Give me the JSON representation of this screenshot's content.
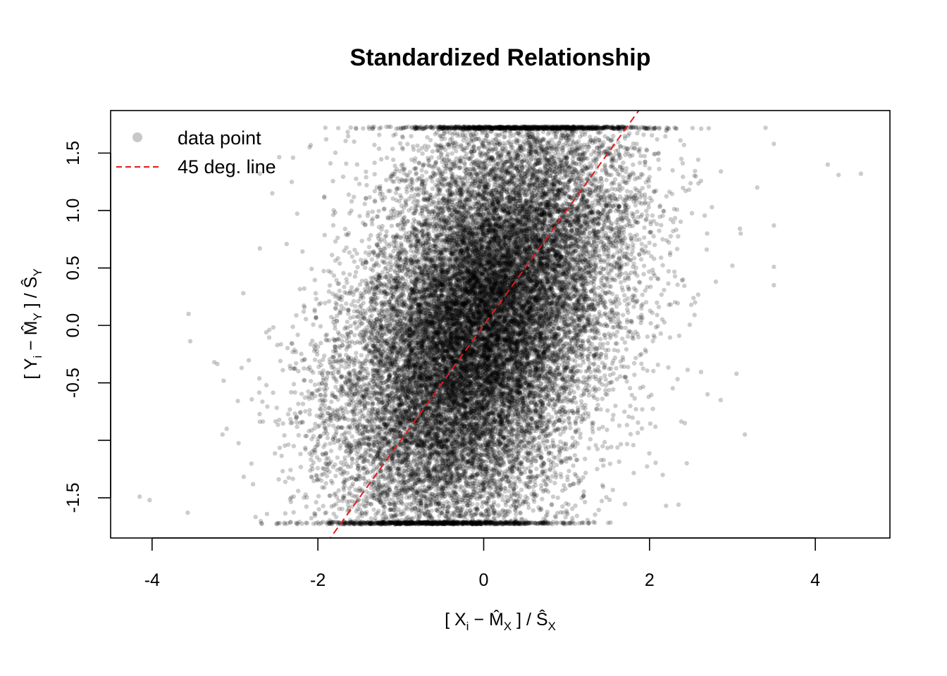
{
  "chart_data": {
    "type": "scatter",
    "title": "Standardized Relationship",
    "xlabel": {
      "open": "[ X",
      "sub_i": "i",
      "minus": " − ",
      "hat_m": "M̂",
      "sub_x": "X",
      "close": " ] / ",
      "hat_s": "Ŝ",
      "sub_x2": "X"
    },
    "ylabel": {
      "open": "[ Y",
      "sub_i": "i",
      "minus": " − ",
      "hat_m": "M̂",
      "sub_y": "Y",
      "close": " ] / ",
      "hat_s": "Ŝ",
      "sub_y2": "Y"
    },
    "xlim": [
      -4.5,
      4.9
    ],
    "ylim": [
      -1.85,
      1.87
    ],
    "x_ticks": [
      {
        "value": -4,
        "label": "-4"
      },
      {
        "value": -2,
        "label": "-2"
      },
      {
        "value": 0,
        "label": "0"
      },
      {
        "value": 2,
        "label": "2"
      },
      {
        "value": 4,
        "label": "4"
      }
    ],
    "y_ticks": [
      {
        "value": -1.5,
        "label": "-1.5"
      },
      {
        "value": -1.0,
        "label": ""
      },
      {
        "value": -0.5,
        "label": "-0.5"
      },
      {
        "value": 0.0,
        "label": "0.0"
      },
      {
        "value": 0.5,
        "label": "0.5"
      },
      {
        "value": 1.0,
        "label": "1.0"
      },
      {
        "value": 1.5,
        "label": "1.5"
      }
    ],
    "y_clip": [
      -1.73,
      1.73
    ],
    "reference_line": {
      "name": "45 deg. line",
      "slope": 1,
      "intercept": 0,
      "color": "#e41a1c",
      "dash": "dashed"
    },
    "legend": {
      "position": "top-left",
      "entries": [
        {
          "label": "data point",
          "symbol": "point",
          "color": "#c8c8c8"
        },
        {
          "label": "45 deg. line",
          "symbol": "dashed-line",
          "color": "#e41a1c"
        }
      ]
    },
    "point_color": "#000000",
    "point_opacity": 0.2,
    "n_points": 25000,
    "x_center_per_y": [
      [
        -1.73,
        -0.5
      ],
      [
        -1.0,
        -0.45
      ],
      [
        0.0,
        -0.05
      ],
      [
        1.0,
        0.4
      ],
      [
        1.73,
        0.5
      ]
    ],
    "x_spread": 0.75,
    "outliers": [
      [
        -4.15,
        -1.49
      ],
      [
        -4.03,
        -1.52
      ],
      [
        -3.57,
        -1.63
      ],
      [
        -3.56,
        0.1
      ],
      [
        -3.25,
        -0.32
      ],
      [
        -3.15,
        -0.95
      ],
      [
        -3.1,
        -0.9
      ],
      [
        -2.9,
        0.28
      ],
      [
        -2.92,
        -0.37
      ],
      [
        -2.7,
        0.67
      ],
      [
        -2.7,
        1.32
      ],
      [
        -2.3,
        1.46
      ],
      [
        -2.1,
        1.55
      ],
      [
        -1.9,
        1.62
      ],
      [
        -2.55,
        1.15
      ],
      [
        4.55,
        1.32
      ],
      [
        4.15,
        1.4
      ],
      [
        4.28,
        1.31
      ],
      [
        3.5,
        1.58
      ],
      [
        3.5,
        0.87
      ],
      [
        3.5,
        0.51
      ],
      [
        3.5,
        0.35
      ],
      [
        3.4,
        1.72
      ],
      [
        3.0,
        0.52
      ],
      [
        3.05,
        -0.42
      ],
      [
        3.15,
        -0.95
      ],
      [
        2.8,
        0.38
      ],
      [
        2.45,
        -1.2
      ],
      [
        2.2,
        -1.57
      ],
      [
        2.35,
        -1.56
      ],
      [
        2.7,
        -0.6
      ],
      [
        2.55,
        0.2
      ],
      [
        3.1,
        0.8
      ],
      [
        3.3,
        1.2
      ]
    ]
  }
}
